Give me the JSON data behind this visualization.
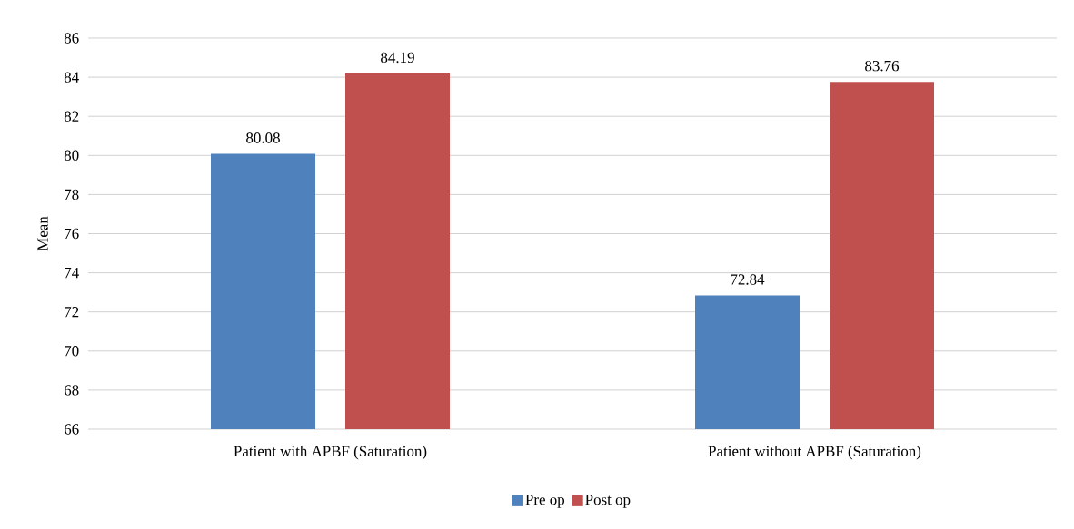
{
  "chart_data": {
    "type": "bar",
    "ylabel": "Mean",
    "categories": [
      "Patient with APBF (Saturation)",
      "Patient without APBF (Saturation)"
    ],
    "series": [
      {
        "name": "Pre op",
        "color": "#4f81bd",
        "values": [
          80.08,
          72.84
        ]
      },
      {
        "name": "Post op",
        "color": "#c0504d",
        "values": [
          84.19,
          83.76
        ]
      }
    ],
    "ylim": [
      66,
      86
    ],
    "yticks": [
      66,
      68,
      70,
      72,
      74,
      76,
      78,
      80,
      82,
      84,
      86
    ],
    "grid": "y",
    "legend": "bottom",
    "data_labels": true
  }
}
